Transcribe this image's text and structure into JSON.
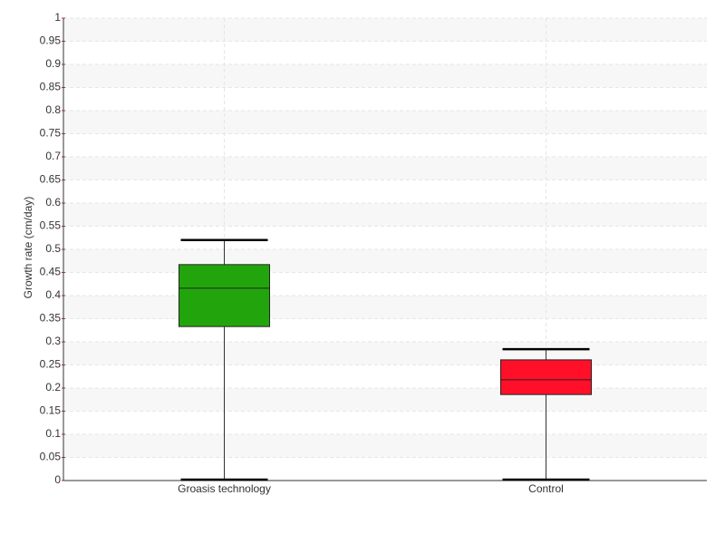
{
  "chart_data": {
    "type": "box",
    "ylabel": "Growth rate (cm/day)",
    "categories": [
      "Groasis technology",
      "Control"
    ],
    "boxes": [
      {
        "min": 0,
        "q1": 0.333,
        "median": 0.416,
        "q3": 0.467,
        "max": 0.52,
        "color": "#22a50c"
      },
      {
        "min": 0,
        "q1": 0.186,
        "median": 0.218,
        "q3": 0.261,
        "max": 0.284,
        "color": "#ff1028"
      }
    ],
    "ylim": [
      0,
      1
    ],
    "yticks": [
      0,
      0.05,
      0.1,
      0.15,
      0.2,
      0.25,
      0.3,
      0.35,
      0.4,
      0.45,
      0.5,
      0.55,
      0.6,
      0.65,
      0.7,
      0.75,
      0.8,
      0.85,
      0.9,
      0.95,
      1
    ],
    "grid": true
  }
}
